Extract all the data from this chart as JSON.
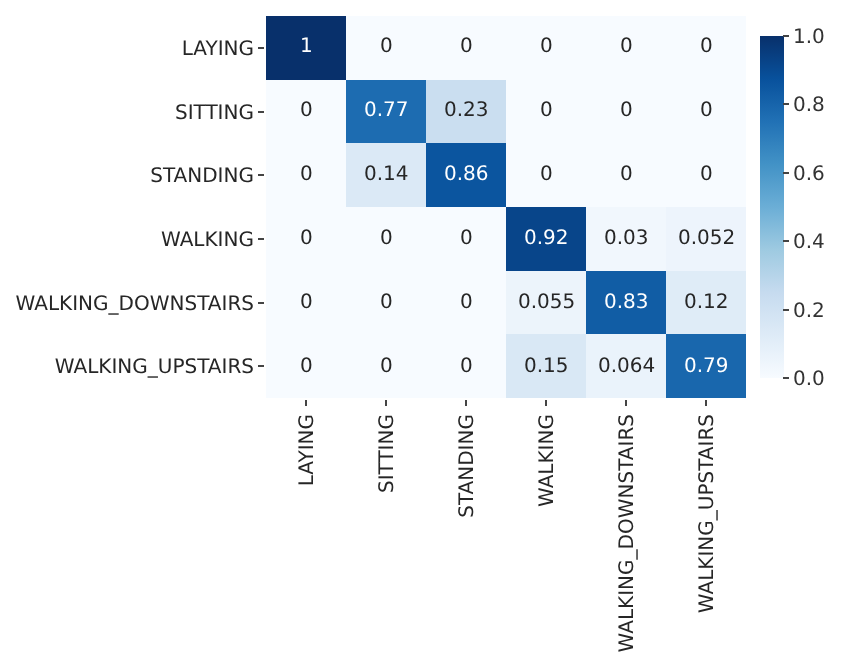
{
  "chart_data": {
    "type": "heatmap",
    "categories": [
      "LAYING",
      "SITTING",
      "STANDING",
      "WALKING",
      "WALKING_DOWNSTAIRS",
      "WALKING_UPSTAIRS"
    ],
    "y_categories": [
      "LAYING",
      "SITTING",
      "STANDING",
      "WALKING",
      "WALKING_DOWNSTAIRS",
      "WALKING_UPSTAIRS"
    ],
    "cells": [
      [
        1,
        0,
        0,
        0,
        0,
        0
      ],
      [
        0,
        0.77,
        0.23,
        0,
        0,
        0
      ],
      [
        0,
        0.14,
        0.86,
        0,
        0,
        0
      ],
      [
        0,
        0,
        0,
        0.92,
        0.03,
        0.052
      ],
      [
        0,
        0,
        0,
        0.055,
        0.83,
        0.12
      ],
      [
        0,
        0,
        0,
        0.15,
        0.064,
        0.79
      ]
    ],
    "clim": [
      0.0,
      1.0
    ],
    "cticks": [
      {
        "value": 0.0,
        "label": "0.0"
      },
      {
        "value": 0.2,
        "label": "0.2"
      },
      {
        "value": 0.4,
        "label": "0.4"
      },
      {
        "value": 0.6,
        "label": "0.6"
      },
      {
        "value": 0.8,
        "label": "0.8"
      },
      {
        "value": 1.0,
        "label": "1.0"
      }
    ],
    "data_labels": true
  }
}
